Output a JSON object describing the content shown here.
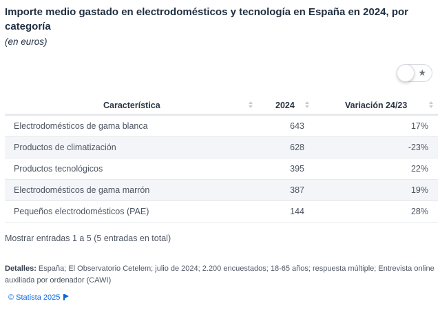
{
  "header": {
    "title": "Importe medio gastado en electrodomésticos y tecnología en España en 2024, por categoría",
    "subtitle": "(en euros)"
  },
  "toggle": {
    "icon": "star-icon",
    "glyph": "★",
    "state": "off"
  },
  "table": {
    "columns": [
      "Característica",
      "2024",
      "Variación 24/23"
    ],
    "rows": [
      {
        "name": "Electrodomésticos de gama blanca",
        "value": "643",
        "variation": "17%"
      },
      {
        "name": "Productos de climatización",
        "value": "628",
        "variation": "-23%"
      },
      {
        "name": "Productos tecnológicos",
        "value": "395",
        "variation": "22%"
      },
      {
        "name": "Electrodomésticos de gama marrón",
        "value": "387",
        "variation": "19%"
      },
      {
        "name": "Pequeños electrodomésticos (PAE)",
        "value": "144",
        "variation": "28%"
      }
    ]
  },
  "footer": {
    "entries": "Mostrar entradas 1 a 5 (5 entradas en total)",
    "details_label": "Detalles:",
    "details_text": " España; El Observatorio Cetelem; julio de 2024; 2.200 encuestados; 18-65 años; respuesta múltiple; Entrevista online auxiliada por ordenador (CAWI)",
    "copyright": "© Statista 2025"
  },
  "colors": {
    "link": "#0666e0",
    "row_alt": "#f3f5f9",
    "title": "#1f2e40"
  }
}
